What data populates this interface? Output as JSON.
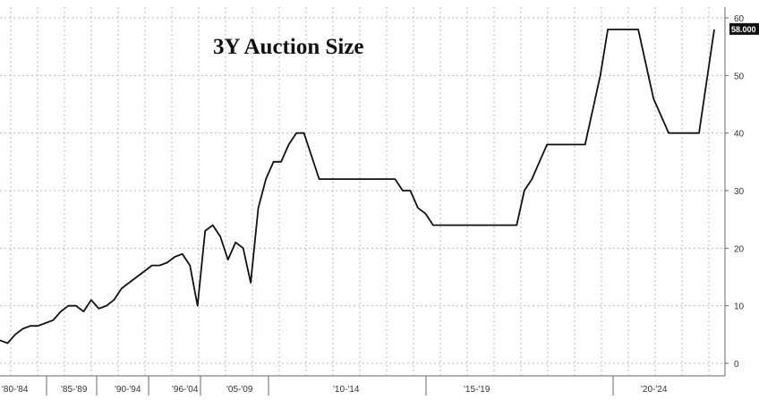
{
  "chart_data": {
    "type": "line",
    "title": "3Y Auction Size",
    "xlabel": "",
    "ylabel": "",
    "ylim": [
      0,
      60
    ],
    "yticks": [
      0,
      10,
      20,
      30,
      40,
      50,
      60
    ],
    "grid": true,
    "x_tick_labels": [
      "'80-'84",
      "'85-'89",
      "'90-'94",
      "'96-'04",
      "'05-'09",
      "'10-'14",
      "'15-'19",
      "'20-'24"
    ],
    "last_value_label": "58.000",
    "colors": {
      "line": "#111111",
      "grid": "#bbbbbb",
      "last_value_bg": "#111111"
    },
    "series": [
      {
        "x": [
          0,
          1,
          2,
          3,
          4,
          5,
          6,
          7,
          8,
          9,
          10,
          11,
          12,
          13,
          14,
          15,
          16,
          17,
          18,
          19,
          20,
          21,
          22,
          23,
          24,
          25,
          26,
          27,
          28,
          29,
          30,
          31,
          32,
          33,
          34,
          35,
          36,
          37,
          38,
          39,
          40,
          41,
          42,
          43,
          44,
          45,
          46,
          47,
          48,
          49,
          50,
          51,
          52,
          53,
          54,
          55,
          56,
          57,
          58,
          59,
          60,
          61,
          62,
          63,
          64,
          65,
          66,
          67,
          68,
          69,
          70,
          71,
          72,
          73,
          74,
          75,
          76,
          77,
          78,
          79,
          80,
          81,
          82,
          83,
          84,
          85,
          86,
          87,
          88,
          89,
          90,
          91,
          92,
          93,
          94
        ],
        "y": [
          4,
          3.5,
          5,
          6,
          6.5,
          6.5,
          7,
          7.5,
          9,
          10,
          10,
          9,
          11,
          9.5,
          10,
          11,
          13,
          14,
          15,
          16,
          17,
          17,
          17.5,
          18.5,
          19,
          17,
          10,
          23,
          24,
          22,
          18,
          21,
          20,
          14,
          27,
          32,
          35,
          35,
          38,
          40,
          40,
          36,
          32,
          32,
          32,
          32,
          32,
          32,
          32,
          32,
          32,
          32,
          32,
          30,
          30,
          27,
          26,
          24,
          24,
          24,
          24,
          24,
          24,
          24,
          24,
          24,
          24,
          24,
          24,
          30,
          32,
          35,
          38,
          38,
          38,
          38,
          38,
          38,
          44,
          50,
          58,
          58,
          58,
          58,
          58,
          52,
          46,
          43,
          40,
          40,
          40,
          40,
          40,
          49,
          58
        ]
      }
    ]
  }
}
